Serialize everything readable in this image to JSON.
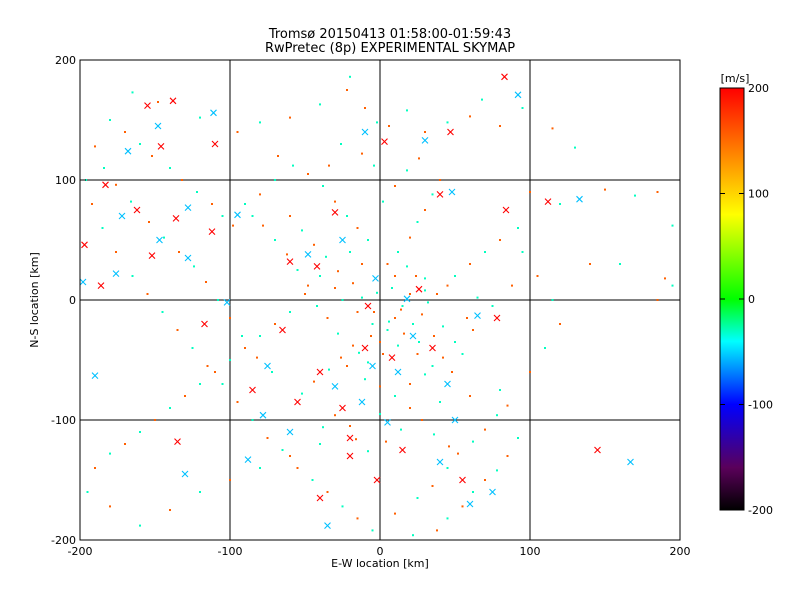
{
  "chart_data": {
    "type": "scatter",
    "title": "Tromsø 20150413 01:58:00-01:59:43",
    "subtitle": "RwPretec (8p) EXPERIMENTAL SKYMAP",
    "xlabel": "E-W location [km]",
    "ylabel": "N-S location [km]",
    "xlim": [
      -200,
      200
    ],
    "ylim": [
      -200,
      200
    ],
    "x_ticks": [
      -200,
      -100,
      0,
      100,
      200
    ],
    "y_ticks": [
      -200,
      -100,
      0,
      100,
      200
    ],
    "grid": true,
    "colorbar": {
      "label": "[m/s]",
      "range": [
        -200,
        200
      ],
      "ticks": [
        200,
        100,
        0,
        -100,
        -200
      ]
    },
    "series": [
      {
        "marker": "x",
        "points": [
          [
            -155,
            162
          ],
          [
            -148,
            145
          ],
          [
            -138,
            166
          ],
          [
            -111,
            156
          ],
          [
            -146,
            128
          ],
          [
            -168,
            124
          ],
          [
            -183,
            96
          ],
          [
            -172,
            70
          ],
          [
            -162,
            75
          ],
          [
            -147,
            50
          ],
          [
            -136,
            68
          ],
          [
            -128,
            77
          ],
          [
            -112,
            57
          ],
          [
            -128,
            35
          ],
          [
            -152,
            37
          ],
          [
            -176,
            22
          ],
          [
            -197,
            46
          ],
          [
            -198,
            15
          ],
          [
            -186,
            12
          ],
          [
            -190,
            -63
          ],
          [
            -117,
            -20
          ],
          [
            -102,
            -2
          ],
          [
            -65,
            -25
          ],
          [
            -75,
            -55
          ],
          [
            -40,
            -60
          ],
          [
            -30,
            -72
          ],
          [
            -10,
            -40
          ],
          [
            -5,
            -55
          ],
          [
            8,
            -48
          ],
          [
            22,
            -30
          ],
          [
            35,
            -40
          ],
          [
            45,
            -70
          ],
          [
            -25,
            -90
          ],
          [
            -12,
            -85
          ],
          [
            -20,
            -115
          ],
          [
            5,
            -102
          ],
          [
            15,
            -125
          ],
          [
            40,
            -135
          ],
          [
            55,
            -150
          ],
          [
            75,
            -160
          ],
          [
            -40,
            -165
          ],
          [
            -35,
            -188
          ],
          [
            3,
            132
          ],
          [
            -10,
            140
          ],
          [
            47,
            140
          ],
          [
            30,
            133
          ],
          [
            83,
            186
          ],
          [
            92,
            171
          ],
          [
            112,
            82
          ],
          [
            133,
            84
          ],
          [
            145,
            -125
          ],
          [
            167,
            -135
          ],
          [
            -110,
            130
          ],
          [
            -95,
            71
          ],
          [
            40,
            88
          ],
          [
            48,
            90
          ],
          [
            84,
            75
          ],
          [
            -25,
            50
          ],
          [
            -30,
            73
          ],
          [
            18,
            1
          ],
          [
            26,
            9
          ],
          [
            -3,
            18
          ],
          [
            -8,
            -5
          ],
          [
            65,
            -13
          ],
          [
            78,
            -15
          ],
          [
            12,
            -60
          ],
          [
            -55,
            -85
          ],
          [
            -60,
            -110
          ],
          [
            -20,
            -130
          ],
          [
            50,
            -100
          ],
          [
            -2,
            -150
          ],
          [
            60,
            -170
          ],
          [
            -60,
            32
          ],
          [
            -48,
            38
          ],
          [
            -42,
            28
          ],
          [
            -130,
            -145
          ],
          [
            -135,
            -118
          ],
          [
            -88,
            -133
          ],
          [
            -85,
            -75
          ],
          [
            -78,
            -96
          ]
        ]
      },
      {
        "marker": "dot",
        "points": [
          [
            -165,
            173
          ],
          [
            -148,
            165
          ],
          [
            -120,
            152
          ],
          [
            -95,
            140
          ],
          [
            -80,
            148
          ],
          [
            -60,
            152
          ],
          [
            -40,
            163
          ],
          [
            -22,
            175
          ],
          [
            -20,
            186
          ],
          [
            -10,
            160
          ],
          [
            -2,
            148
          ],
          [
            6,
            145
          ],
          [
            18,
            158
          ],
          [
            30,
            140
          ],
          [
            45,
            148
          ],
          [
            60,
            153
          ],
          [
            68,
            167
          ],
          [
            80,
            145
          ],
          [
            95,
            160
          ],
          [
            115,
            143
          ],
          [
            130,
            127
          ],
          [
            150,
            92
          ],
          [
            170,
            87
          ],
          [
            185,
            90
          ],
          [
            195,
            62
          ],
          [
            190,
            18
          ],
          [
            195,
            12
          ],
          [
            185,
            0
          ],
          [
            160,
            30
          ],
          [
            140,
            30
          ],
          [
            120,
            80
          ],
          [
            100,
            90
          ],
          [
            92,
            60
          ],
          [
            80,
            50
          ],
          [
            70,
            40
          ],
          [
            60,
            30
          ],
          [
            50,
            20
          ],
          [
            45,
            12
          ],
          [
            30,
            18
          ],
          [
            20,
            5
          ],
          [
            15,
            -5
          ],
          [
            10,
            -15
          ],
          [
            5,
            -25
          ],
          [
            0,
            -35
          ],
          [
            -5,
            -20
          ],
          [
            -15,
            -10
          ],
          [
            -25,
            0
          ],
          [
            -30,
            10
          ],
          [
            -40,
            20
          ],
          [
            -50,
            5
          ],
          [
            -60,
            -10
          ],
          [
            -70,
            -20
          ],
          [
            -80,
            -30
          ],
          [
            -90,
            -40
          ],
          [
            -100,
            -50
          ],
          [
            -110,
            -60
          ],
          [
            -120,
            -70
          ],
          [
            -130,
            -80
          ],
          [
            -140,
            -90
          ],
          [
            -150,
            -100
          ],
          [
            -160,
            -110
          ],
          [
            -170,
            -120
          ],
          [
            -180,
            -128
          ],
          [
            -190,
            -140
          ],
          [
            -195,
            -160
          ],
          [
            -180,
            -172
          ],
          [
            -160,
            -188
          ],
          [
            -140,
            -175
          ],
          [
            -120,
            -160
          ],
          [
            -100,
            -150
          ],
          [
            -80,
            -140
          ],
          [
            -60,
            -130
          ],
          [
            -40,
            -120
          ],
          [
            -20,
            -105
          ],
          [
            0,
            -95
          ],
          [
            20,
            -90
          ],
          [
            40,
            -85
          ],
          [
            60,
            -80
          ],
          [
            80,
            -75
          ],
          [
            100,
            -60
          ],
          [
            110,
            -40
          ],
          [
            120,
            -20
          ],
          [
            115,
            0
          ],
          [
            105,
            20
          ],
          [
            95,
            40
          ],
          [
            88,
            12
          ],
          [
            75,
            -5
          ],
          [
            62,
            -25
          ],
          [
            55,
            -45
          ],
          [
            48,
            -60
          ],
          [
            35,
            -55
          ],
          [
            25,
            -45
          ],
          [
            12,
            -38
          ],
          [
            2,
            -45
          ],
          [
            -8,
            -52
          ],
          [
            -18,
            -38
          ],
          [
            -28,
            -28
          ],
          [
            -35,
            -15
          ],
          [
            -42,
            -5
          ],
          [
            -48,
            12
          ],
          [
            -55,
            25
          ],
          [
            -62,
            38
          ],
          [
            -70,
            50
          ],
          [
            -78,
            62
          ],
          [
            -85,
            70
          ],
          [
            -98,
            62
          ],
          [
            -105,
            70
          ],
          [
            -112,
            80
          ],
          [
            -122,
            90
          ],
          [
            -132,
            100
          ],
          [
            -140,
            110
          ],
          [
            -152,
            120
          ],
          [
            -160,
            130
          ],
          [
            -170,
            140
          ],
          [
            -180,
            150
          ],
          [
            -190,
            128
          ],
          [
            -196,
            100
          ],
          [
            -192,
            80
          ],
          [
            -185,
            60
          ],
          [
            -176,
            40
          ],
          [
            -165,
            20
          ],
          [
            -155,
            5
          ],
          [
            -145,
            -10
          ],
          [
            -135,
            -25
          ],
          [
            -125,
            -40
          ],
          [
            -115,
            -55
          ],
          [
            -105,
            -70
          ],
          [
            -95,
            -85
          ],
          [
            -85,
            -100
          ],
          [
            -75,
            -115
          ],
          [
            -65,
            -125
          ],
          [
            -55,
            -140
          ],
          [
            -45,
            -150
          ],
          [
            -35,
            -160
          ],
          [
            -25,
            -172
          ],
          [
            -15,
            -182
          ],
          [
            -5,
            -192
          ],
          [
            10,
            -178
          ],
          [
            25,
            -165
          ],
          [
            35,
            -155
          ],
          [
            45,
            -140
          ],
          [
            52,
            -128
          ],
          [
            62,
            -118
          ],
          [
            70,
            -108
          ],
          [
            78,
            -96
          ],
          [
            85,
            -88
          ],
          [
            92,
            -115
          ],
          [
            85,
            -130
          ],
          [
            78,
            -142
          ],
          [
            70,
            -150
          ],
          [
            62,
            -160
          ],
          [
            55,
            -172
          ],
          [
            45,
            -182
          ],
          [
            38,
            -192
          ],
          [
            22,
            -196
          ],
          [
            5,
            30
          ],
          [
            12,
            40
          ],
          [
            20,
            52
          ],
          [
            25,
            65
          ],
          [
            30,
            75
          ],
          [
            35,
            88
          ],
          [
            40,
            100
          ],
          [
            -8,
            50
          ],
          [
            -15,
            60
          ],
          [
            -22,
            70
          ],
          [
            -30,
            82
          ],
          [
            -38,
            95
          ],
          [
            -48,
            105
          ],
          [
            -58,
            112
          ],
          [
            -68,
            120
          ],
          [
            8,
            10
          ],
          [
            14,
            -8
          ],
          [
            22,
            -20
          ],
          [
            28,
            -12
          ],
          [
            32,
            -2
          ],
          [
            38,
            5
          ],
          [
            42,
            -22
          ],
          [
            36,
            -30
          ],
          [
            26,
            -35
          ],
          [
            16,
            -28
          ],
          [
            6,
            -18
          ],
          [
            -4,
            -10
          ],
          [
            -12,
            2
          ],
          [
            -18,
            14
          ],
          [
            -2,
            6
          ],
          [
            10,
            20
          ],
          [
            18,
            28
          ],
          [
            24,
            20
          ],
          [
            30,
            8
          ],
          [
            -6,
            -30
          ],
          [
            -14,
            -44
          ],
          [
            -22,
            -55
          ],
          [
            -10,
            -66
          ],
          [
            0,
            -72
          ],
          [
            10,
            -80
          ],
          [
            20,
            -70
          ],
          [
            30,
            -62
          ],
          [
            42,
            -48
          ],
          [
            50,
            -35
          ],
          [
            58,
            -15
          ],
          [
            65,
            2
          ],
          [
            -26,
            -48
          ],
          [
            -34,
            -58
          ],
          [
            -44,
            -68
          ],
          [
            -52,
            -78
          ],
          [
            -30,
            -96
          ],
          [
            -38,
            -106
          ],
          [
            -16,
            -116
          ],
          [
            -8,
            -126
          ],
          [
            4,
            -118
          ],
          [
            14,
            -108
          ],
          [
            28,
            -100
          ],
          [
            36,
            -112
          ],
          [
            46,
            -122
          ],
          [
            -72,
            -60
          ],
          [
            -82,
            -48
          ],
          [
            -92,
            -30
          ],
          [
            -100,
            -15
          ],
          [
            -108,
            0
          ],
          [
            -116,
            15
          ],
          [
            -124,
            28
          ],
          [
            -134,
            40
          ],
          [
            -144,
            52
          ],
          [
            -154,
            65
          ],
          [
            -166,
            82
          ],
          [
            -176,
            96
          ],
          [
            -184,
            110
          ],
          [
            -60,
            70
          ],
          [
            -52,
            58
          ],
          [
            -44,
            46
          ],
          [
            -36,
            36
          ],
          [
            -28,
            24
          ],
          [
            -20,
            40
          ],
          [
            -12,
            30
          ],
          [
            2,
            82
          ],
          [
            10,
            95
          ],
          [
            18,
            108
          ],
          [
            26,
            118
          ],
          [
            -4,
            112
          ],
          [
            -12,
            122
          ],
          [
            -26,
            130
          ],
          [
            -34,
            112
          ],
          [
            -70,
            100
          ],
          [
            -80,
            88
          ],
          [
            -90,
            80
          ]
        ]
      }
    ]
  }
}
